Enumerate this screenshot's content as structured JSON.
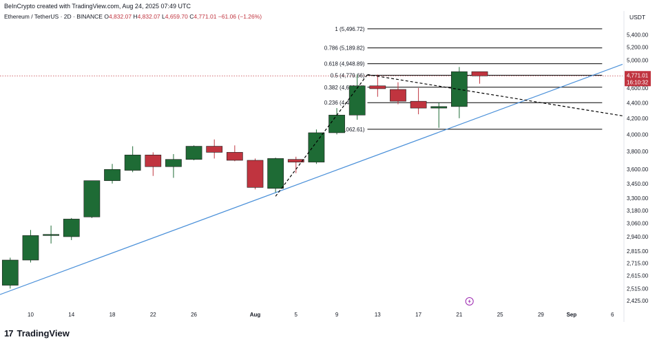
{
  "attribution": "BeInCrypto created with TradingView.com, Aug 24, 2025 07:49 UTC",
  "footer": {
    "brand": "TradingView",
    "brand_mark": "17"
  },
  "colors": {
    "up": "#1e6b35",
    "down": "#c0343f",
    "trend": "#4a90d9",
    "fib": "#000000",
    "price_tag": "#c0343f"
  },
  "chart_data": {
    "type": "candlestick",
    "header": {
      "symbol": "Ethereum / TetherUS · 2D · BINANCE",
      "open_label": "O",
      "open": "4,832.07",
      "high_label": "H",
      "high": "4,832.07",
      "low_label": "L",
      "low": "4,659.70",
      "close_label": "C",
      "close": "4,771.01",
      "change": "−61.06 (−1.26%)"
    },
    "currency": "USDT",
    "scale": "log",
    "ylim": [
      2380,
      5800
    ],
    "y_ticks": [
      5400,
      5200,
      5000,
      4800,
      4600,
      4400,
      4200,
      4000,
      3800,
      3600,
      3450,
      3300,
      3180,
      3060,
      2940,
      2815,
      2715,
      2615,
      2515,
      2425
    ],
    "y_tick_labels": [
      "5,400.00",
      "5,200.00",
      "5,000.00",
      "4,800.00",
      "4,600.00",
      "4,400.00",
      "4,200.00",
      "4,000.00",
      "3,800.00",
      "3,600.00",
      "3,450.00",
      "3,300.00",
      "3,180.00",
      "3,060.00",
      "2,940.00",
      "2,815.00",
      "2,715.00",
      "2,615.00",
      "2,515.00",
      "2,425.00"
    ],
    "x_tick_labels": [
      {
        "date": "2025-07-10",
        "label": "10"
      },
      {
        "date": "2025-07-14",
        "label": "14"
      },
      {
        "date": "2025-07-18",
        "label": "18"
      },
      {
        "date": "2025-07-22",
        "label": "22"
      },
      {
        "date": "2025-07-26",
        "label": "26"
      },
      {
        "date": "2025-08-01",
        "label": "Aug"
      },
      {
        "date": "2025-08-05",
        "label": "5"
      },
      {
        "date": "2025-08-09",
        "label": "9"
      },
      {
        "date": "2025-08-13",
        "label": "13"
      },
      {
        "date": "2025-08-17",
        "label": "17"
      },
      {
        "date": "2025-08-21",
        "label": "21"
      },
      {
        "date": "2025-08-25",
        "label": "25"
      },
      {
        "date": "2025-08-29",
        "label": "29"
      },
      {
        "date": "2025-09-01",
        "label": "Sep"
      },
      {
        "date": "2025-09-05",
        "label": "6"
      }
    ],
    "x_range": [
      "2025-07-07",
      "2025-09-06"
    ],
    "candles": [
      {
        "date": "2025-07-08",
        "o": 2540,
        "h": 2760,
        "l": 2515,
        "c": 2740
      },
      {
        "date": "2025-07-10",
        "o": 2740,
        "h": 3000,
        "l": 2720,
        "c": 2950
      },
      {
        "date": "2025-07-12",
        "o": 2950,
        "h": 3040,
        "l": 2880,
        "c": 2960
      },
      {
        "date": "2025-07-14",
        "o": 2940,
        "h": 3110,
        "l": 2910,
        "c": 3100
      },
      {
        "date": "2025-07-16",
        "o": 3120,
        "h": 3460,
        "l": 3110,
        "c": 3480
      },
      {
        "date": "2025-07-18",
        "o": 3480,
        "h": 3660,
        "l": 3450,
        "c": 3600
      },
      {
        "date": "2025-07-20",
        "o": 3590,
        "h": 3860,
        "l": 3570,
        "c": 3760
      },
      {
        "date": "2025-07-22",
        "o": 3760,
        "h": 3790,
        "l": 3530,
        "c": 3630
      },
      {
        "date": "2025-07-24",
        "o": 3630,
        "h": 3770,
        "l": 3510,
        "c": 3710
      },
      {
        "date": "2025-07-26",
        "o": 3710,
        "h": 3870,
        "l": 3700,
        "c": 3860
      },
      {
        "date": "2025-07-28",
        "o": 3860,
        "h": 3940,
        "l": 3720,
        "c": 3790
      },
      {
        "date": "2025-07-30",
        "o": 3790,
        "h": 3870,
        "l": 3690,
        "c": 3700
      },
      {
        "date": "2025-08-01",
        "o": 3700,
        "h": 3720,
        "l": 3390,
        "c": 3410
      },
      {
        "date": "2025-08-03",
        "o": 3400,
        "h": 3730,
        "l": 3360,
        "c": 3720
      },
      {
        "date": "2025-08-05",
        "o": 3710,
        "h": 3740,
        "l": 3560,
        "c": 3680
      },
      {
        "date": "2025-08-07",
        "o": 3680,
        "h": 4060,
        "l": 3660,
        "c": 4020
      },
      {
        "date": "2025-08-09",
        "o": 4020,
        "h": 4330,
        "l": 4000,
        "c": 4240
      },
      {
        "date": "2025-08-11",
        "o": 4240,
        "h": 4790,
        "l": 4180,
        "c": 4630
      },
      {
        "date": "2025-08-13",
        "o": 4630,
        "h": 4790,
        "l": 4480,
        "c": 4590
      },
      {
        "date": "2025-08-15",
        "o": 4580,
        "h": 4680,
        "l": 4380,
        "c": 4420
      },
      {
        "date": "2025-08-17",
        "o": 4420,
        "h": 4600,
        "l": 4250,
        "c": 4330
      },
      {
        "date": "2025-08-19",
        "o": 4330,
        "h": 4400,
        "l": 4080,
        "c": 4350
      },
      {
        "date": "2025-08-21",
        "o": 4350,
        "h": 4900,
        "l": 4200,
        "c": 4832
      },
      {
        "date": "2025-08-23",
        "o": 4832.07,
        "h": 4832.07,
        "l": 4659.7,
        "c": 4771.01
      }
    ],
    "fib_levels": [
      {
        "ratio": "1",
        "value": 5496.72,
        "label": "1 (5,496.72)"
      },
      {
        "ratio": "0.786",
        "value": 5189.82,
        "label": "0.786 (5,189.82)"
      },
      {
        "ratio": "0.618",
        "value": 4948.89,
        "label": "0.618 (4,948.89)"
      },
      {
        "ratio": "0.5",
        "value": 4779.66,
        "label": "0.5 (4,779.66)"
      },
      {
        "ratio": "0.382",
        "value": 4610.44,
        "label": "0.382 (4,610.44)"
      },
      {
        "ratio": "0.236",
        "value": 4401.06,
        "label": "0.236 (4,401.06)"
      },
      {
        "ratio": "0",
        "value": 4062.61,
        "label": "0 (4,062.61)"
      }
    ],
    "fib_range_dates": [
      "2025-08-12",
      "2025-09-04"
    ],
    "trendline": {
      "from": {
        "date": "2025-07-07",
        "value": 2470
      },
      "to": {
        "date": "2025-09-06",
        "value": 4940
      }
    },
    "dashed_lines": [
      {
        "from": {
          "date": "2025-08-03",
          "value": 3320
        },
        "to": {
          "date": "2025-08-12",
          "value": 4790
        }
      },
      {
        "from": {
          "date": "2025-08-12",
          "value": 4790
        },
        "to": {
          "date": "2025-09-06",
          "value": 4230
        }
      }
    ],
    "last_price": {
      "value": 4771.01,
      "label": "4,771.01",
      "countdown": "16:10:32"
    }
  }
}
